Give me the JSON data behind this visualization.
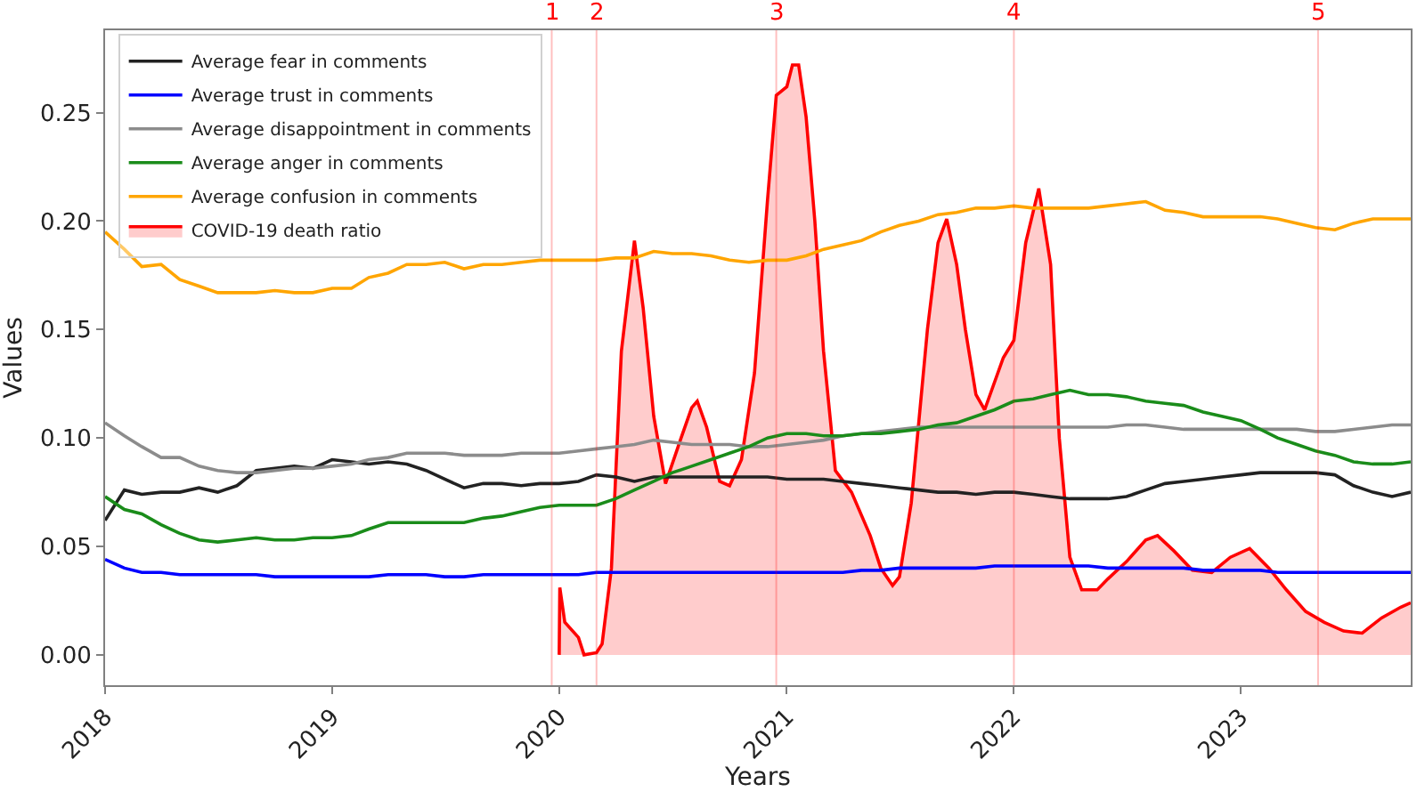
{
  "chart_data": {
    "type": "line",
    "xlabel": "Years",
    "ylabel": "Values",
    "x": [
      "2018-01",
      "2018-02",
      "2018-03",
      "2018-04",
      "2018-05",
      "2018-06",
      "2018-07",
      "2018-08",
      "2018-09",
      "2018-10",
      "2018-11",
      "2018-12",
      "2019-01",
      "2019-02",
      "2019-03",
      "2019-04",
      "2019-05",
      "2019-06",
      "2019-07",
      "2019-08",
      "2019-09",
      "2019-10",
      "2019-11",
      "2019-12",
      "2020-01",
      "2020-02",
      "2020-03",
      "2020-04",
      "2020-05",
      "2020-06",
      "2020-07",
      "2020-08",
      "2020-09",
      "2020-10",
      "2020-11",
      "2020-12",
      "2021-01",
      "2021-02",
      "2021-03",
      "2021-04",
      "2021-05",
      "2021-06",
      "2021-07",
      "2021-08",
      "2021-09",
      "2021-10",
      "2021-11",
      "2021-12",
      "2022-01",
      "2022-02",
      "2022-03",
      "2022-04",
      "2022-05",
      "2022-06",
      "2022-07",
      "2022-08",
      "2022-09",
      "2022-10",
      "2022-11",
      "2022-12",
      "2023-01",
      "2023-02",
      "2023-03",
      "2023-04",
      "2023-05",
      "2023-06",
      "2023-07",
      "2023-08",
      "2023-09",
      "2023-10"
    ],
    "series": [
      {
        "name": "Average fear in comments",
        "color": "#222222",
        "values": [
          0.062,
          0.076,
          0.074,
          0.075,
          0.075,
          0.077,
          0.075,
          0.078,
          0.085,
          0.086,
          0.087,
          0.086,
          0.09,
          0.089,
          0.088,
          0.089,
          0.088,
          0.085,
          0.081,
          0.077,
          0.079,
          0.079,
          0.078,
          0.079,
          0.079,
          0.08,
          0.083,
          0.082,
          0.08,
          0.082,
          0.082,
          0.082,
          0.082,
          0.082,
          0.082,
          0.082,
          0.081,
          0.081,
          0.081,
          0.08,
          0.079,
          0.078,
          0.077,
          0.076,
          0.075,
          0.075,
          0.074,
          0.075,
          0.075,
          0.074,
          0.073,
          0.072,
          0.072,
          0.072,
          0.073,
          0.076,
          0.079,
          0.08,
          0.081,
          0.082,
          0.083,
          0.084,
          0.084,
          0.084,
          0.084,
          0.083,
          0.078,
          0.075,
          0.073,
          0.075
        ]
      },
      {
        "name": "Average trust in comments",
        "color": "#0000ff",
        "values": [
          0.044,
          0.04,
          0.038,
          0.038,
          0.037,
          0.037,
          0.037,
          0.037,
          0.037,
          0.036,
          0.036,
          0.036,
          0.036,
          0.036,
          0.036,
          0.037,
          0.037,
          0.037,
          0.036,
          0.036,
          0.037,
          0.037,
          0.037,
          0.037,
          0.037,
          0.037,
          0.038,
          0.038,
          0.038,
          0.038,
          0.038,
          0.038,
          0.038,
          0.038,
          0.038,
          0.038,
          0.038,
          0.038,
          0.038,
          0.038,
          0.039,
          0.039,
          0.04,
          0.04,
          0.04,
          0.04,
          0.04,
          0.041,
          0.041,
          0.041,
          0.041,
          0.041,
          0.041,
          0.04,
          0.04,
          0.04,
          0.04,
          0.04,
          0.039,
          0.039,
          0.039,
          0.039,
          0.038,
          0.038,
          0.038,
          0.038,
          0.038,
          0.038,
          0.038,
          0.038
        ]
      },
      {
        "name": "Average disappointment in comments",
        "color": "#8c8c8c",
        "values": [
          0.107,
          0.101,
          0.096,
          0.091,
          0.091,
          0.087,
          0.085,
          0.084,
          0.084,
          0.085,
          0.086,
          0.086,
          0.087,
          0.088,
          0.09,
          0.091,
          0.093,
          0.093,
          0.093,
          0.092,
          0.092,
          0.092,
          0.093,
          0.093,
          0.093,
          0.094,
          0.095,
          0.096,
          0.097,
          0.099,
          0.098,
          0.097,
          0.097,
          0.097,
          0.096,
          0.096,
          0.097,
          0.098,
          0.099,
          0.101,
          0.102,
          0.103,
          0.104,
          0.105,
          0.105,
          0.105,
          0.105,
          0.105,
          0.105,
          0.105,
          0.105,
          0.105,
          0.105,
          0.105,
          0.106,
          0.106,
          0.105,
          0.104,
          0.104,
          0.104,
          0.104,
          0.104,
          0.104,
          0.104,
          0.103,
          0.103,
          0.104,
          0.105,
          0.106,
          0.106
        ]
      },
      {
        "name": "Average anger in comments",
        "color": "#1a8c1a",
        "values": [
          0.073,
          0.067,
          0.065,
          0.06,
          0.056,
          0.053,
          0.052,
          0.053,
          0.054,
          0.053,
          0.053,
          0.054,
          0.054,
          0.055,
          0.058,
          0.061,
          0.061,
          0.061,
          0.061,
          0.061,
          0.063,
          0.064,
          0.066,
          0.068,
          0.069,
          0.069,
          0.069,
          0.072,
          0.076,
          0.08,
          0.084,
          0.087,
          0.09,
          0.093,
          0.096,
          0.1,
          0.102,
          0.102,
          0.101,
          0.101,
          0.102,
          0.102,
          0.103,
          0.104,
          0.106,
          0.107,
          0.11,
          0.113,
          0.117,
          0.118,
          0.12,
          0.122,
          0.12,
          0.12,
          0.119,
          0.117,
          0.116,
          0.115,
          0.112,
          0.11,
          0.108,
          0.104,
          0.1,
          0.097,
          0.094,
          0.092,
          0.089,
          0.088,
          0.088,
          0.089
        ]
      },
      {
        "name": "Average confusion in comments",
        "color": "#ffa500",
        "values": [
          0.195,
          0.187,
          0.179,
          0.18,
          0.173,
          0.17,
          0.167,
          0.167,
          0.167,
          0.168,
          0.167,
          0.167,
          0.169,
          0.169,
          0.174,
          0.176,
          0.18,
          0.18,
          0.181,
          0.178,
          0.18,
          0.18,
          0.181,
          0.182,
          0.182,
          0.182,
          0.182,
          0.183,
          0.183,
          0.186,
          0.185,
          0.185,
          0.184,
          0.182,
          0.181,
          0.182,
          0.182,
          0.184,
          0.187,
          0.189,
          0.191,
          0.195,
          0.198,
          0.2,
          0.203,
          0.204,
          0.206,
          0.206,
          0.207,
          0.206,
          0.206,
          0.206,
          0.206,
          0.207,
          0.208,
          0.209,
          0.205,
          0.204,
          0.202,
          0.202,
          0.202,
          0.202,
          0.201,
          0.199,
          0.197,
          0.196,
          0.199,
          0.201,
          0.201,
          0.201
        ]
      },
      {
        "name": "COVID-19 death ratio",
        "type": "area",
        "color": "#ff0000",
        "x": [
          "2020-01-01",
          "2020-01-02",
          "2020-01-10",
          "2020-02-01",
          "2020-02-10",
          "2020-03-01",
          "2020-03-10",
          "2020-03-25",
          "2020-04-10",
          "2020-05-01",
          "2020-05-15",
          "2020-06-01",
          "2020-06-20",
          "2020-07-15",
          "2020-08-01",
          "2020-08-10",
          "2020-08-25",
          "2020-09-15",
          "2020-10-01",
          "2020-10-20",
          "2020-11-10",
          "2020-12-01",
          "2020-12-15",
          "2021-01-01",
          "2021-01-10",
          "2021-01-20",
          "2021-02-01",
          "2021-02-15",
          "2021-03-01",
          "2021-03-20",
          "2021-04-15",
          "2021-05-15",
          "2021-06-01",
          "2021-06-20",
          "2021-07-01",
          "2021-07-20",
          "2021-08-15",
          "2021-09-01",
          "2021-09-15",
          "2021-10-01",
          "2021-10-15",
          "2021-11-01",
          "2021-11-15",
          "2021-12-15",
          "2022-01-01",
          "2022-01-20",
          "2022-02-10",
          "2022-03-01",
          "2022-03-15",
          "2022-04-01",
          "2022-04-20",
          "2022-05-15",
          "2022-06-01",
          "2022-07-01",
          "2022-08-01",
          "2022-08-20",
          "2022-09-15",
          "2022-10-15",
          "2022-11-15",
          "2022-12-15",
          "2023-01-15",
          "2023-02-15",
          "2023-03-15",
          "2023-04-15",
          "2023-05-15",
          "2023-06-15",
          "2023-07-15",
          "2023-08-15",
          "2023-09-15",
          "2023-10-01"
        ],
        "values": [
          0.0,
          0.031,
          0.015,
          0.008,
          0.0,
          0.001,
          0.005,
          0.04,
          0.14,
          0.191,
          0.16,
          0.11,
          0.079,
          0.1,
          0.114,
          0.117,
          0.105,
          0.08,
          0.078,
          0.09,
          0.13,
          0.21,
          0.258,
          0.262,
          0.272,
          0.272,
          0.248,
          0.2,
          0.14,
          0.085,
          0.075,
          0.055,
          0.04,
          0.032,
          0.036,
          0.07,
          0.15,
          0.19,
          0.201,
          0.18,
          0.15,
          0.12,
          0.113,
          0.137,
          0.145,
          0.19,
          0.215,
          0.18,
          0.1,
          0.045,
          0.03,
          0.03,
          0.035,
          0.043,
          0.053,
          0.055,
          0.048,
          0.039,
          0.038,
          0.045,
          0.049,
          0.04,
          0.03,
          0.02,
          0.015,
          0.011,
          0.01,
          0.017,
          0.022,
          0.024
        ]
      }
    ],
    "xlim": [
      "2018-01-01",
      "2023-10-01"
    ],
    "xticks": [
      {
        "value": "2018-01-01",
        "label": "2018"
      },
      {
        "value": "2019-01-01",
        "label": "2019"
      },
      {
        "value": "2020-01-01",
        "label": "2020"
      },
      {
        "value": "2021-01-01",
        "label": "2021"
      },
      {
        "value": "2022-01-01",
        "label": "2022"
      },
      {
        "value": "2023-01-01",
        "label": "2023"
      }
    ],
    "ylim": [
      -0.014,
      0.288
    ],
    "yticks": [
      {
        "value": 0,
        "label": "0.00"
      },
      {
        "value": 0.05,
        "label": "0.05"
      },
      {
        "value": 0.1,
        "label": "0.10"
      },
      {
        "value": 0.15,
        "label": "0.15"
      },
      {
        "value": 0.2,
        "label": "0.20"
      },
      {
        "value": 0.25,
        "label": "0.25"
      }
    ],
    "ref_lines": [
      {
        "axis": "x",
        "value": "2019-12-20",
        "label": "1",
        "color": "#ff0000"
      },
      {
        "axis": "x",
        "value": "2020-03-01",
        "label": "2",
        "color": "#ff0000"
      },
      {
        "axis": "x",
        "value": "2020-12-15",
        "label": "3",
        "color": "#ff0000"
      },
      {
        "axis": "x",
        "value": "2022-01-01",
        "label": "4",
        "color": "#ff0000"
      },
      {
        "axis": "x",
        "value": "2023-05-05",
        "label": "5",
        "color": "#ff0000"
      }
    ],
    "legend": "top left",
    "marker": "none",
    "line_style": "solid"
  }
}
